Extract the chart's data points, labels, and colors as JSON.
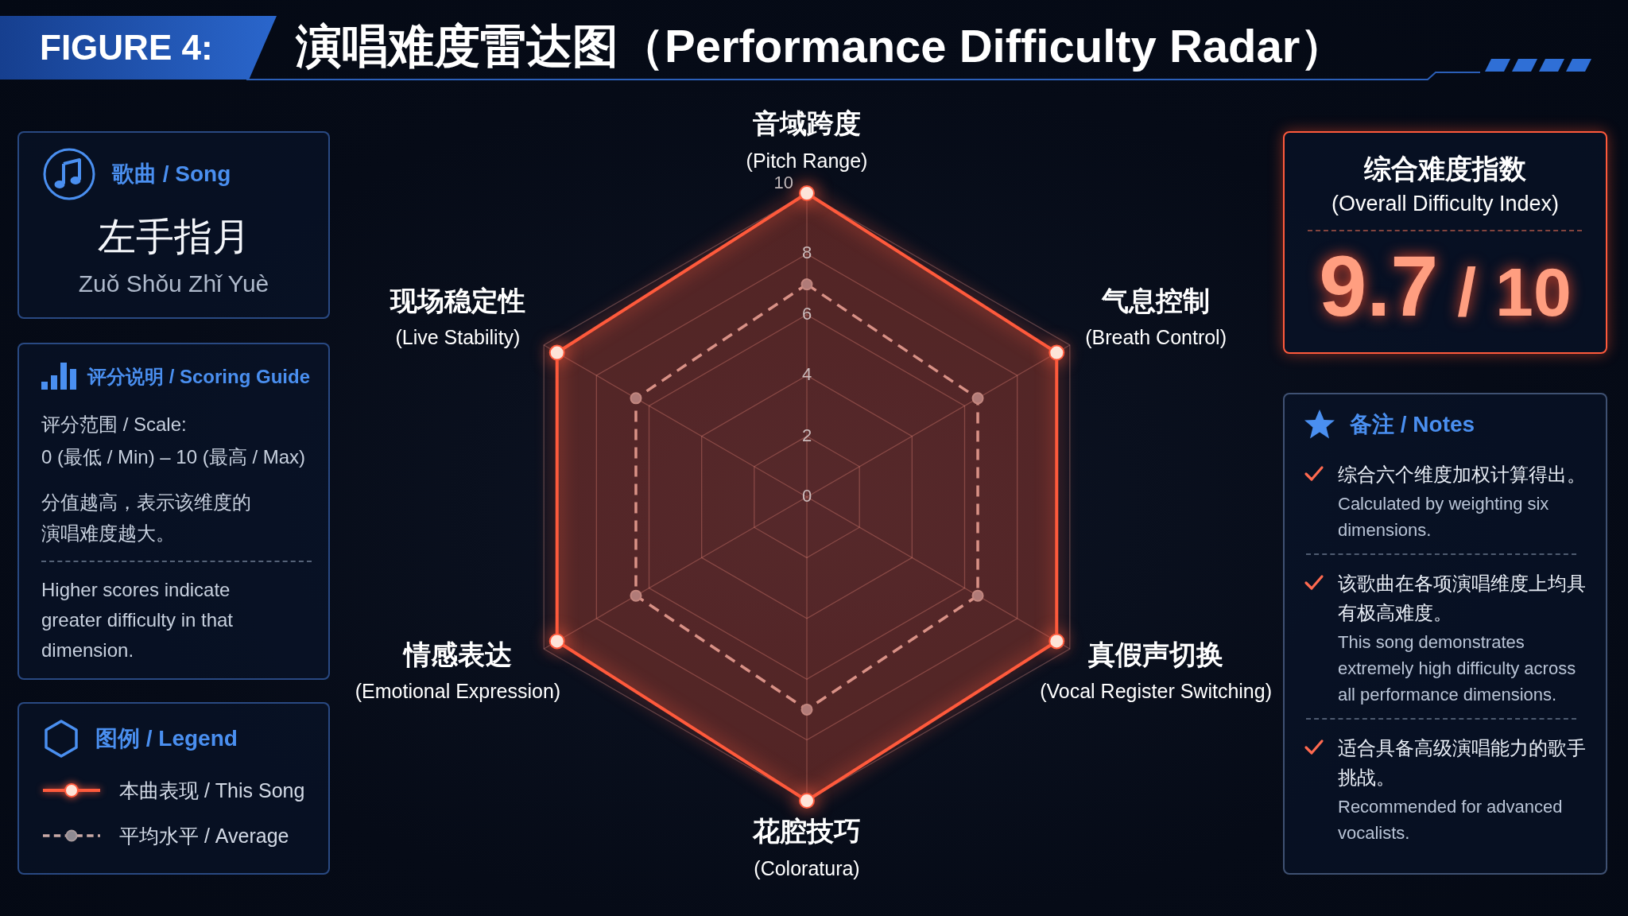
{
  "chart_data": {
    "type": "radar",
    "title": "演唱难度雷达图（Performance Difficulty Radar）",
    "categories": [
      "音域跨度 (Pitch Range)",
      "气息控制 (Breath Control)",
      "真假声切换 (Vocal Register Switching)",
      "花腔技巧 (Coloratura)",
      "情感表达 (Emotional Expression)",
      "现场稳定性 (Live Stability)"
    ],
    "series": [
      {
        "name": "本曲表现 / This Song",
        "color": "#ff5a3c",
        "values": [
          10,
          9.5,
          9.5,
          10,
          9.5,
          9.5
        ]
      },
      {
        "name": "平均水平 / Average",
        "color": "#c9a9a6",
        "values": [
          7,
          6.5,
          6.5,
          7,
          6.5,
          6.5
        ],
        "line_style": "dashed"
      }
    ],
    "ylim": [
      0,
      10
    ],
    "yticks": [
      0,
      2,
      4,
      6,
      8,
      10
    ],
    "grid": true,
    "legend": "bottom left",
    "legend_title": "图例 / Legend",
    "marker": "circle",
    "line_style": "solid",
    "annotations": [
      "FIGURE 4:",
      "歌曲 / Song",
      "左手指月",
      "Zuǒ Shǒu Zhǐ Yuè",
      "评分说明 / Scoring Guide",
      "评分范围 / Scale:",
      "0 (最低 / Min) – 10 (最高 / Max)",
      "分值越高，表示该维度的演唱难度越大。",
      "Higher scores indicate greater difficulty in that dimension.",
      "综合难度指数",
      "(Overall Difficulty Index)",
      "9.7 / 10",
      "备注 / Notes",
      "综合六个维度加权计算得出。",
      "Calculated by weighting six dimensions.",
      "该歌曲在各项演唱维度上均具有极高难度。",
      "This song demonstrates extremely high difficulty across all performance dimensions.",
      "适合具备高级演唱能力的歌手挑战。",
      "Recommended for advanced vocalists."
    ]
  }
}
